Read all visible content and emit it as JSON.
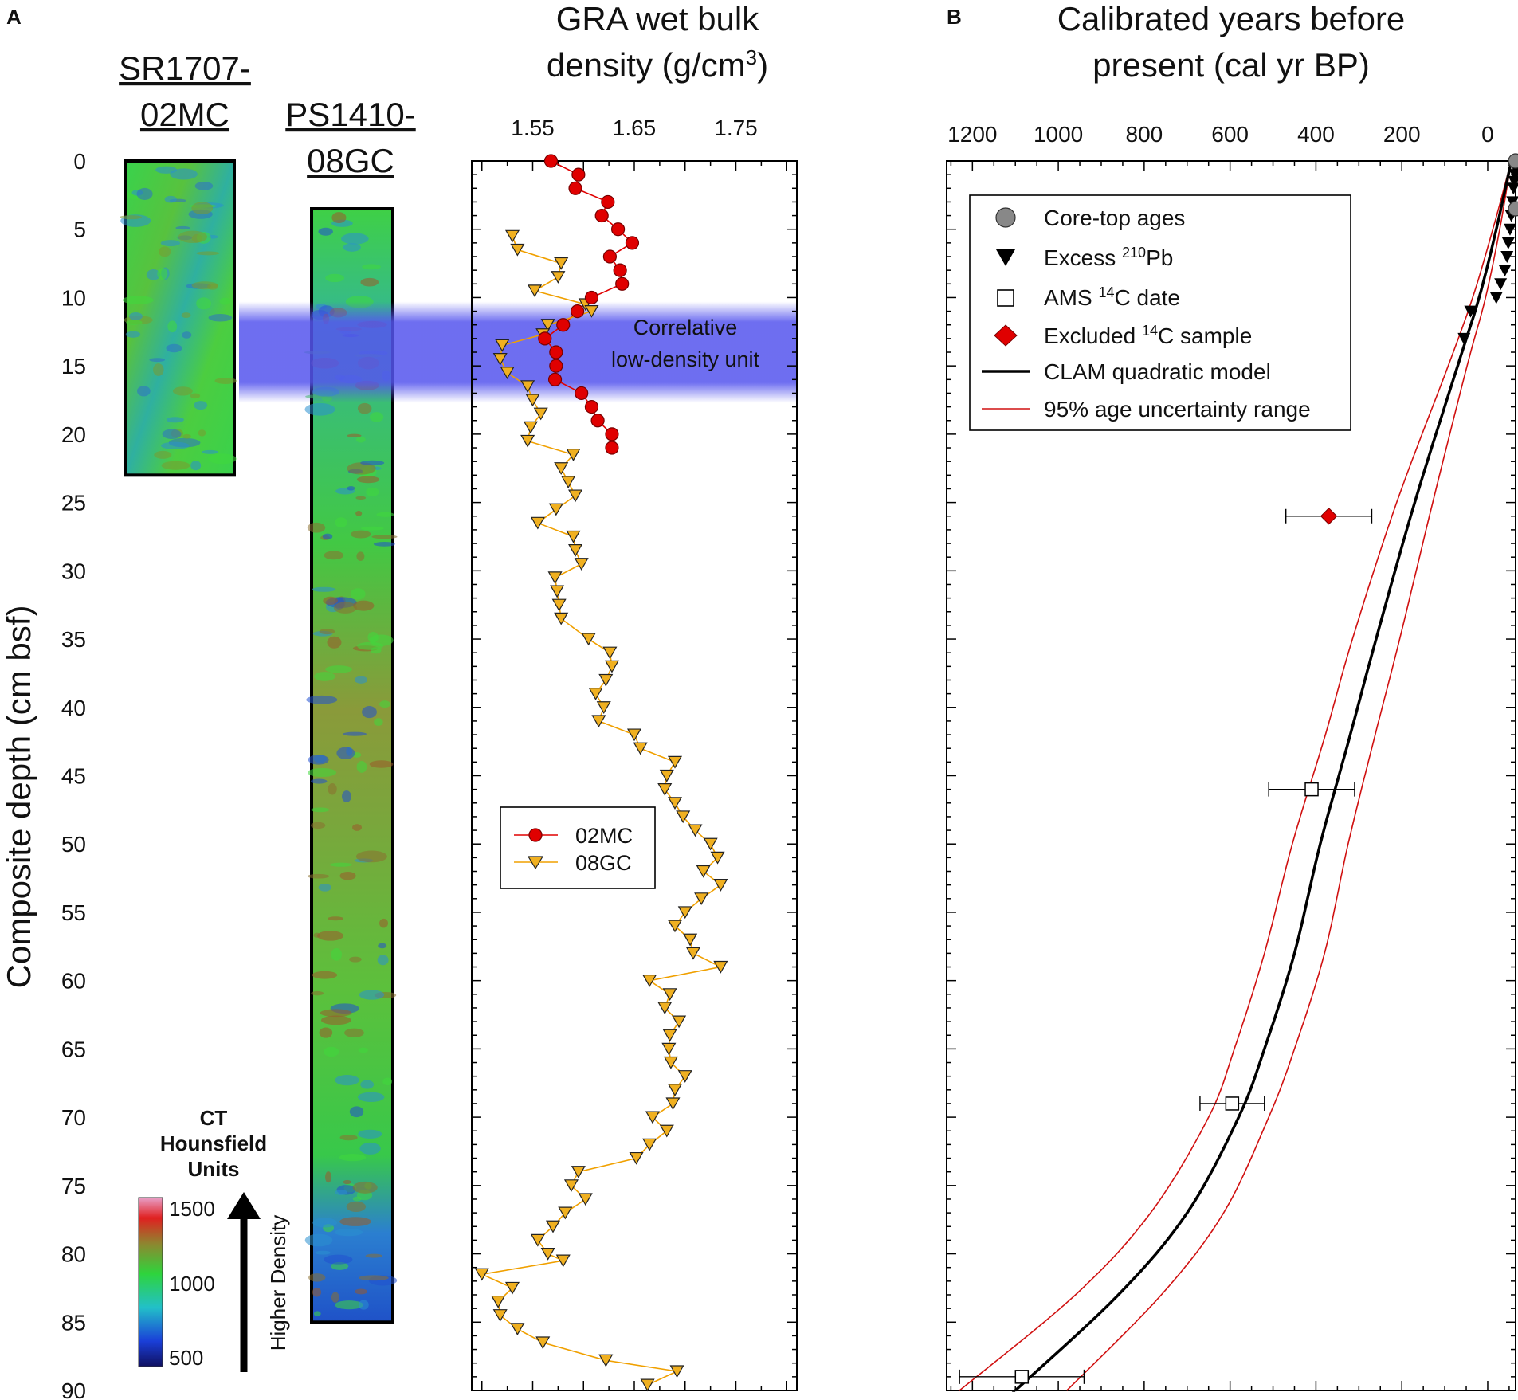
{
  "panels": {
    "a": "A",
    "b": "B"
  },
  "depth_axis": {
    "label": "Composite depth (cm bsf)",
    "ticks": [
      0,
      5,
      10,
      15,
      20,
      25,
      30,
      35,
      40,
      45,
      50,
      55,
      60,
      65,
      70,
      75,
      80,
      85,
      90
    ],
    "range": [
      0,
      90
    ]
  },
  "cores": [
    {
      "label_1": "SR1707-",
      "label_2": "02MC",
      "top": 0,
      "bottom": 23
    },
    {
      "label_1": "PS1410-",
      "label_2": "08GC",
      "top": 3.5,
      "bottom": 85
    }
  ],
  "ct_legend": {
    "title_1": "CT",
    "title_2": "Hounsfield",
    "title_3": "Units",
    "ticks": [
      "1500",
      "1000",
      "500"
    ],
    "arrow_label": "Higher Density"
  },
  "band": {
    "label_1": "Correlative",
    "label_2": "low-density unit",
    "from": 11,
    "to": 17,
    "color": "#5555ee"
  },
  "chart_data": [
    {
      "type": "line",
      "title": "GRA wet bulk density (g/cm3)",
      "title_1": "GRA wet bulk",
      "title_2": "density (g/cm",
      "title_sup": "3",
      "title_end": ")",
      "xlabel": "GRA wet bulk density (g/cm3)",
      "ylabel": "Composite depth (cm bsf)",
      "xlim": [
        1.49,
        1.81
      ],
      "ylim": [
        0,
        90
      ],
      "xticks": [
        1.55,
        1.65,
        1.75
      ],
      "xtick_labels": [
        "1.55",
        "1.65",
        "1.75"
      ],
      "series": [
        {
          "name": "02MC",
          "color": "#e00000",
          "points": [
            [
              1.568,
              0
            ],
            [
              1.595,
              1
            ],
            [
              1.592,
              2
            ],
            [
              1.624,
              3
            ],
            [
              1.618,
              4
            ],
            [
              1.634,
              5
            ],
            [
              1.648,
              6
            ],
            [
              1.626,
              7
            ],
            [
              1.636,
              8
            ],
            [
              1.638,
              9
            ],
            [
              1.608,
              10
            ],
            [
              1.594,
              11
            ],
            [
              1.58,
              12
            ],
            [
              1.562,
              13
            ],
            [
              1.573,
              14
            ],
            [
              1.573,
              15
            ],
            [
              1.572,
              16
            ],
            [
              1.598,
              17
            ],
            [
              1.608,
              18
            ],
            [
              1.614,
              19
            ],
            [
              1.628,
              20
            ],
            [
              1.628,
              21
            ]
          ]
        },
        {
          "name": "08GC",
          "color": "#f0a000",
          "points": [
            [
              1.53,
              5.5
            ],
            [
              1.535,
              6.5
            ],
            [
              1.578,
              7.5
            ],
            [
              1.575,
              8.5
            ],
            [
              1.552,
              9.5
            ],
            [
              1.602,
              10.5
            ],
            [
              1.608,
              11
            ],
            [
              1.565,
              12
            ],
            [
              1.56,
              12.7
            ],
            [
              1.52,
              13.5
            ],
            [
              1.518,
              14.5
            ],
            [
              1.525,
              15.5
            ],
            [
              1.545,
              16.5
            ],
            [
              1.55,
              17.5
            ],
            [
              1.558,
              18.5
            ],
            [
              1.548,
              19.5
            ],
            [
              1.545,
              20.5
            ],
            [
              1.59,
              21.5
            ],
            [
              1.578,
              22.5
            ],
            [
              1.585,
              23.5
            ],
            [
              1.592,
              24.5
            ],
            [
              1.573,
              25.5
            ],
            [
              1.555,
              26.5
            ],
            [
              1.59,
              27.5
            ],
            [
              1.592,
              28.5
            ],
            [
              1.598,
              29.5
            ],
            [
              1.572,
              30.5
            ],
            [
              1.574,
              31.5
            ],
            [
              1.576,
              32.5
            ],
            [
              1.578,
              33.5
            ],
            [
              1.605,
              35
            ],
            [
              1.626,
              36
            ],
            [
              1.628,
              37
            ],
            [
              1.622,
              38
            ],
            [
              1.612,
              39
            ],
            [
              1.62,
              40
            ],
            [
              1.615,
              41
            ],
            [
              1.65,
              42
            ],
            [
              1.656,
              43
            ],
            [
              1.69,
              44
            ],
            [
              1.682,
              45
            ],
            [
              1.68,
              46
            ],
            [
              1.69,
              47
            ],
            [
              1.698,
              48
            ],
            [
              1.71,
              49
            ],
            [
              1.725,
              50
            ],
            [
              1.732,
              51
            ],
            [
              1.718,
              52
            ],
            [
              1.735,
              53
            ],
            [
              1.716,
              54
            ],
            [
              1.7,
              55
            ],
            [
              1.69,
              56
            ],
            [
              1.705,
              57
            ],
            [
              1.708,
              58
            ],
            [
              1.735,
              59
            ],
            [
              1.665,
              60
            ],
            [
              1.685,
              61
            ],
            [
              1.68,
              62
            ],
            [
              1.694,
              63
            ],
            [
              1.685,
              64
            ],
            [
              1.684,
              65
            ],
            [
              1.686,
              66
            ],
            [
              1.7,
              67
            ],
            [
              1.69,
              68
            ],
            [
              1.688,
              69
            ],
            [
              1.668,
              70
            ],
            [
              1.682,
              71
            ],
            [
              1.665,
              72
            ],
            [
              1.652,
              73
            ],
            [
              1.595,
              74
            ],
            [
              1.588,
              75
            ],
            [
              1.602,
              76
            ],
            [
              1.582,
              77
            ],
            [
              1.57,
              78
            ],
            [
              1.555,
              79
            ],
            [
              1.565,
              80
            ],
            [
              1.58,
              80.5
            ],
            [
              1.5,
              81.5
            ],
            [
              1.53,
              82.5
            ],
            [
              1.516,
              83.5
            ],
            [
              1.518,
              84.5
            ],
            [
              1.535,
              85.5
            ],
            [
              1.56,
              86.5
            ],
            [
              1.622,
              87.8
            ],
            [
              1.692,
              88.6
            ],
            [
              1.663,
              89.6
            ]
          ]
        }
      ],
      "legend": [
        {
          "label": "02MC",
          "marker": "circle"
        },
        {
          "label": "08GC",
          "marker": "triangle-down"
        }
      ]
    },
    {
      "type": "scatter",
      "title": "Calibrated years before present (cal yr BP)",
      "title_1": "Calibrated years before",
      "title_2": "present (cal yr BP)",
      "xlabel": "Calibrated years before present (cal yr BP)",
      "ylabel": "Composite depth (cm bsf)",
      "xlim": [
        1260,
        -65
      ],
      "ylim": [
        0,
        90
      ],
      "xticks": [
        1200,
        1000,
        800,
        600,
        400,
        200,
        0
      ],
      "xtick_labels": [
        "1200",
        "1000",
        "800",
        "600",
        "400",
        "200",
        "0"
      ],
      "core_top_ages": [
        [
          -65,
          0
        ],
        [
          -65,
          3.5
        ]
      ],
      "excess_210pb": [
        [
          -65,
          0.5
        ],
        [
          -64,
          1
        ],
        [
          -62,
          1.5
        ],
        [
          -60,
          2
        ],
        [
          -58,
          3
        ],
        [
          -55,
          4
        ],
        [
          -52,
          5
        ],
        [
          -48,
          6
        ],
        [
          -45,
          7
        ],
        [
          -40,
          8
        ],
        [
          -30,
          9
        ],
        [
          -20,
          10
        ],
        [
          40,
          11
        ],
        [
          55,
          13
        ]
      ],
      "ams_14c": [
        {
          "age": 410,
          "err_low": 310,
          "err_high": 510,
          "depth": 46
        },
        {
          "age": 595,
          "err_low": 520,
          "err_high": 670,
          "depth": 69
        },
        {
          "age": 1085,
          "err_low": 940,
          "err_high": 1230,
          "depth": 89
        }
      ],
      "excluded_14c": [
        {
          "age": 370,
          "err_low": 270,
          "err_high": 470,
          "depth": 26
        }
      ],
      "clam_model": [
        [
          -55,
          0
        ],
        [
          -20,
          5
        ],
        [
          20,
          10
        ],
        [
          70,
          15
        ],
        [
          170,
          25
        ],
        [
          260,
          35
        ],
        [
          320,
          42
        ],
        [
          390,
          50
        ],
        [
          450,
          58
        ],
        [
          520,
          65
        ],
        [
          580,
          70
        ],
        [
          700,
          77
        ],
        [
          860,
          83
        ],
        [
          1100,
          90
        ]
      ],
      "uncertainty_low": [
        [
          -55,
          0
        ],
        [
          -28,
          5
        ],
        [
          5,
          10
        ],
        [
          48,
          15
        ],
        [
          128,
          25
        ],
        [
          205,
          35
        ],
        [
          262,
          42
        ],
        [
          325,
          50
        ],
        [
          380,
          58
        ],
        [
          450,
          65
        ],
        [
          510,
          70
        ],
        [
          615,
          77
        ],
        [
          760,
          83
        ],
        [
          980,
          90
        ]
      ],
      "uncertainty_high": [
        [
          -55,
          0
        ],
        [
          -12,
          5
        ],
        [
          35,
          10
        ],
        [
          92,
          15
        ],
        [
          212,
          25
        ],
        [
          315,
          35
        ],
        [
          378,
          42
        ],
        [
          455,
          50
        ],
        [
          520,
          58
        ],
        [
          590,
          65
        ],
        [
          650,
          70
        ],
        [
          785,
          77
        ],
        [
          960,
          83
        ],
        [
          1230,
          90
        ]
      ],
      "legend": [
        {
          "label": "Core-top ages"
        },
        {
          "label": "Excess ",
          "sup": "210",
          "label_end": "Pb"
        },
        {
          "label": "AMS ",
          "sup": "14",
          "label_end": "C date"
        },
        {
          "label": "Excluded ",
          "sup": "14",
          "label_end": "C sample"
        },
        {
          "label": "CLAM quadratic model"
        },
        {
          "label": "95% age uncertainty range"
        }
      ]
    }
  ]
}
